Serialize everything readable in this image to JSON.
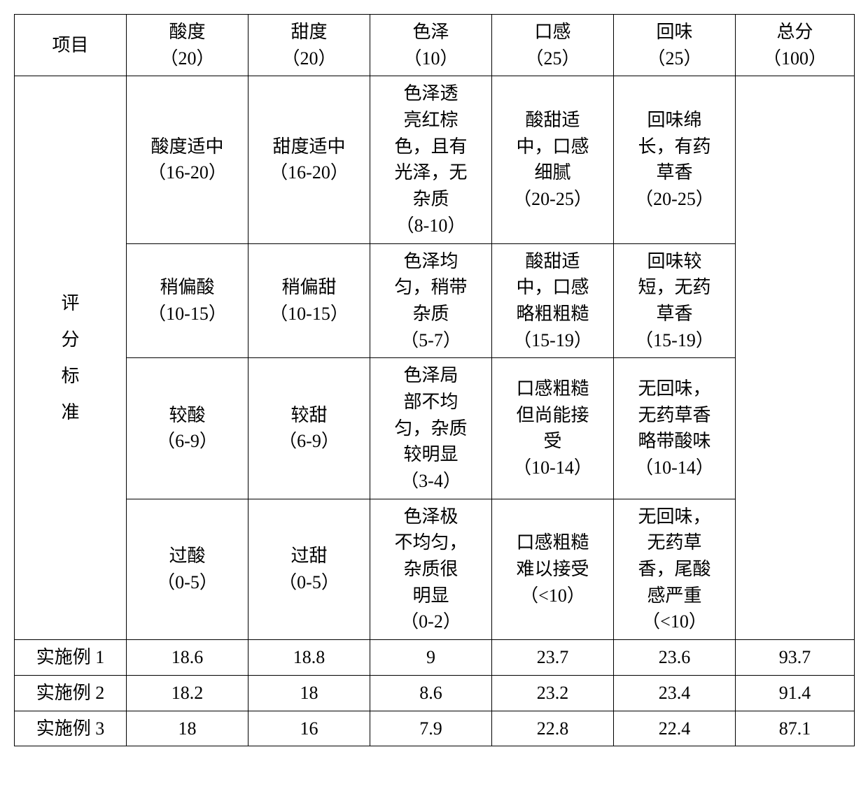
{
  "table": {
    "type": "table",
    "columns": [
      {
        "label": "项目",
        "sub": ""
      },
      {
        "label": "酸度",
        "sub": "（20）"
      },
      {
        "label": "甜度",
        "sub": "（20）"
      },
      {
        "label": "色泽",
        "sub": "（10）"
      },
      {
        "label": "口感",
        "sub": "（25）"
      },
      {
        "label": "回味",
        "sub": "（25）"
      },
      {
        "label": "总分",
        "sub": "（100）"
      }
    ],
    "criteria_label": "评\n分\n标\n准",
    "criteria_rows": [
      {
        "acidity": "酸度适中\n（16-20）",
        "sweetness": "甜度适中\n（16-20）",
        "color": "色泽透\n亮红棕\n色，且有\n光泽，无\n杂质\n（8-10）",
        "mouthfeel": "酸甜适\n中，口感\n细腻\n（20-25）",
        "aftertaste": "回味绵\n长，有药\n草香\n（20-25）"
      },
      {
        "acidity": "稍偏酸\n（10-15）",
        "sweetness": "稍偏甜\n（10-15）",
        "color": "色泽均\n匀，稍带\n杂质\n（5-7）",
        "mouthfeel": "酸甜适\n中，口感\n略粗粗糙\n（15-19）",
        "aftertaste": "回味较\n短，无药\n草香\n（15-19）"
      },
      {
        "acidity": "较酸\n（6-9）",
        "sweetness": "较甜\n（6-9）",
        "color": "色泽局\n部不均\n匀，杂质\n较明显\n（3-4）",
        "mouthfeel": "口感粗糙\n但尚能接\n受\n（10-14）",
        "aftertaste": "无回味，\n无药草香\n略带酸味\n（10-14）"
      },
      {
        "acidity": "过酸\n（0-5）",
        "sweetness": "过甜\n（0-5）",
        "color": "色泽极\n不均匀，\n杂质很\n明显\n（0-2）",
        "mouthfeel": "口感粗糙\n难以接受\n（<10）",
        "aftertaste": "无回味，\n无药草\n香，尾酸\n感严重\n（<10）"
      }
    ],
    "data_rows": [
      {
        "label": "实施例 1",
        "acidity": "18.6",
        "sweetness": "18.8",
        "color": "9",
        "mouthfeel": "23.7",
        "aftertaste": "23.6",
        "total": "93.7"
      },
      {
        "label": "实施例 2",
        "acidity": "18.2",
        "sweetness": "18",
        "color": "8.6",
        "mouthfeel": "23.2",
        "aftertaste": "23.4",
        "total": "91.4"
      },
      {
        "label": "实施例 3",
        "acidity": "18",
        "sweetness": "16",
        "color": "7.9",
        "mouthfeel": "22.8",
        "aftertaste": "22.4",
        "total": "87.1"
      }
    ],
    "border_color": "#000000",
    "background_color": "#ffffff",
    "text_color": "#000000",
    "font_size_pt": 20
  }
}
